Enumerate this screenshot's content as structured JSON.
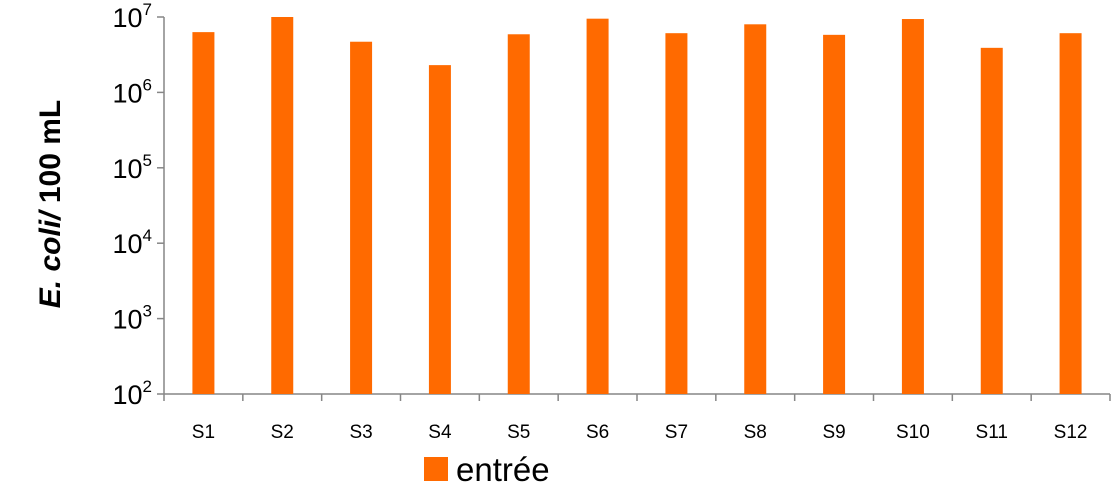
{
  "chart_data": {
    "type": "bar",
    "yscale": "log",
    "ylim": [
      100,
      10000000
    ],
    "yticks": [
      {
        "base": "10",
        "exp": "2"
      },
      {
        "base": "10",
        "exp": "3"
      },
      {
        "base": "10",
        "exp": "4"
      },
      {
        "base": "10",
        "exp": "5"
      },
      {
        "base": "10",
        "exp": "6"
      },
      {
        "base": "10",
        "exp": "7"
      }
    ],
    "ylabel_italic": "E. coli/",
    "ylabel_rest": " 100 mL",
    "categories": [
      "S1",
      "S2",
      "S3",
      "S4",
      "S5",
      "S6",
      "S7",
      "S8",
      "S9",
      "S10",
      "S11",
      "S12"
    ],
    "series": [
      {
        "name": "entrée",
        "color": "#ff6a00",
        "values": [
          6300000,
          10000000,
          4700000,
          2300000,
          5900000,
          9500000,
          6100000,
          8000000,
          5800000,
          9400000,
          3900000,
          6100000
        ]
      }
    ],
    "grid": false,
    "legend_position": "bottom"
  }
}
